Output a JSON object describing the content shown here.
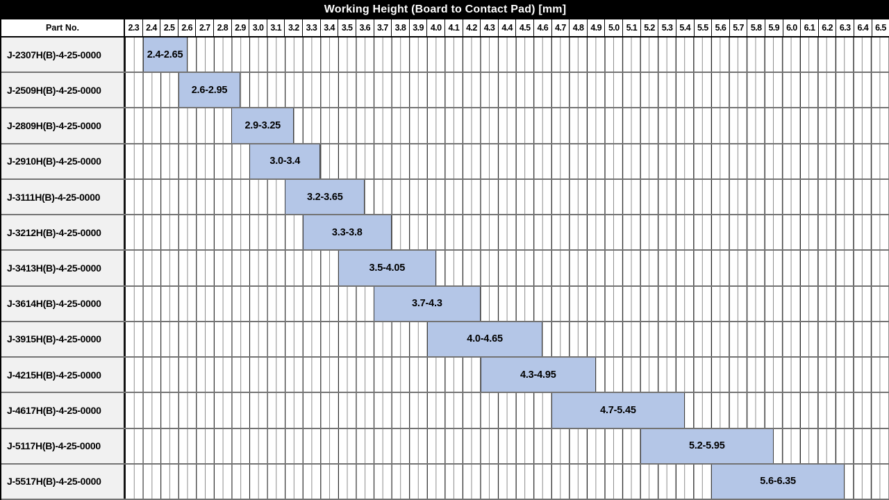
{
  "header": {
    "part_no_label": "Part No."
  },
  "colors": {
    "title_bg": "#000000",
    "title_fg": "#ffffff",
    "bar_fill": "#b4c6e7",
    "bar_border": "#3d3d3d",
    "row_label_bg": "#f1f1f1",
    "grid_major": "#1a1a1a",
    "grid_minor": "#8a8a8a",
    "row_sep": "#737373"
  },
  "chart_data": {
    "type": "bar",
    "orientation": "horizontal-range",
    "title": "Working Height (Board to Contact Pad) [mm]",
    "xlim": [
      2.3,
      6.6
    ],
    "tick_step": 0.1,
    "minor_step": 0.05,
    "grid": true,
    "x_ticks": [
      "2.3",
      "2.4",
      "2.5",
      "2.6",
      "2.7",
      "2.8",
      "2.9",
      "3.0",
      "3.1",
      "3.2",
      "3.3",
      "3.4",
      "3.5",
      "3.6",
      "3.7",
      "3.8",
      "3.9",
      "4.0",
      "4.1",
      "4.2",
      "4.3",
      "4.4",
      "4.5",
      "4.6",
      "4.7",
      "4.8",
      "4.9",
      "5.0",
      "5.1",
      "5.2",
      "5.3",
      "5.4",
      "5.5",
      "5.6",
      "5.7",
      "5.8",
      "5.9",
      "6.0",
      "6.1",
      "6.2",
      "6.3",
      "6.4",
      "6.5"
    ],
    "rows": [
      {
        "part_no": "J-2307H(B)-4-25-0000",
        "range": [
          2.4,
          2.65
        ],
        "range_label": "2.4-2.65"
      },
      {
        "part_no": "J-2509H(B)-4-25-0000",
        "range": [
          2.6,
          2.95
        ],
        "range_label": "2.6-2.95"
      },
      {
        "part_no": "J-2809H(B)-4-25-0000",
        "range": [
          2.9,
          3.25
        ],
        "range_label": "2.9-3.25"
      },
      {
        "part_no": "J-2910H(B)-4-25-0000",
        "range": [
          3.0,
          3.4
        ],
        "range_label": "3.0-3.4"
      },
      {
        "part_no": "J-3111H(B)-4-25-0000",
        "range": [
          3.2,
          3.65
        ],
        "range_label": "3.2-3.65"
      },
      {
        "part_no": "J-3212H(B)-4-25-0000",
        "range": [
          3.3,
          3.8
        ],
        "range_label": "3.3-3.8"
      },
      {
        "part_no": "J-3413H(B)-4-25-0000",
        "range": [
          3.5,
          4.05
        ],
        "range_label": "3.5-4.05"
      },
      {
        "part_no": "J-3614H(B)-4-25-0000",
        "range": [
          3.7,
          4.3
        ],
        "range_label": "3.7-4.3"
      },
      {
        "part_no": "J-3915H(B)-4-25-0000",
        "range": [
          4.0,
          4.65
        ],
        "range_label": "4.0-4.65"
      },
      {
        "part_no": "J-4215H(B)-4-25-0000",
        "range": [
          4.3,
          4.95
        ],
        "range_label": "4.3-4.95"
      },
      {
        "part_no": "J-4617H(B)-4-25-0000",
        "range": [
          4.7,
          5.45
        ],
        "range_label": "4.7-5.45"
      },
      {
        "part_no": "J-5117H(B)-4-25-0000",
        "range": [
          5.2,
          5.95
        ],
        "range_label": "5.2-5.95"
      },
      {
        "part_no": "J-5517H(B)-4-25-0000",
        "range": [
          5.6,
          6.35
        ],
        "range_label": "5.6-6.35"
      }
    ]
  }
}
